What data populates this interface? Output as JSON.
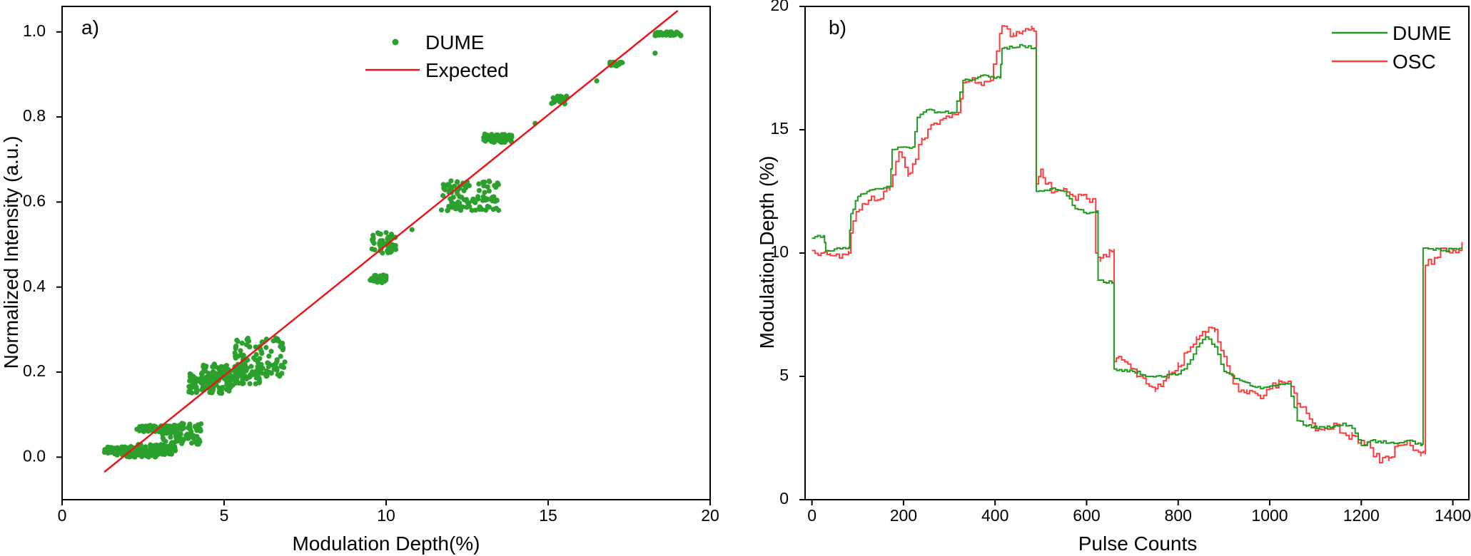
{
  "chart_data": [
    {
      "type": "scatter",
      "panel_label": "a)",
      "xlabel": "Modulation Depth(%)",
      "ylabel": "Normalized Intensity (a.u.)",
      "xlim": [
        0,
        20
      ],
      "ylim": [
        -0.1,
        1.06
      ],
      "xticks": [
        0,
        5,
        10,
        15,
        20
      ],
      "yticks": [
        0.0,
        0.2,
        0.4,
        0.6,
        0.8,
        1.0
      ],
      "ytick_labels": [
        "0.0",
        "0.2",
        "0.4",
        "0.6",
        "0.8",
        "1.0"
      ],
      "legend_position": "top-center",
      "series": [
        {
          "name": "DUME",
          "kind": "points",
          "color": "#2ca02c",
          "clusters": [
            {
              "x": [
                1.3,
                2.6
              ],
              "y": [
                0.005,
                0.025
              ]
            },
            {
              "x": [
                1.9,
                2.9
              ],
              "y": [
                0.0,
                0.015
              ]
            },
            {
              "x": [
                2.3,
                3.5
              ],
              "y": [
                0.005,
                0.03
              ]
            },
            {
              "x": [
                2.3,
                3.6
              ],
              "y": [
                0.06,
                0.075
              ]
            },
            {
              "x": [
                3.1,
                4.3
              ],
              "y": [
                0.03,
                0.08
              ]
            },
            {
              "x": [
                3.9,
                5.3
              ],
              "y": [
                0.15,
                0.2
              ]
            },
            {
              "x": [
                4.3,
                6.2
              ],
              "y": [
                0.17,
                0.22
              ]
            },
            {
              "x": [
                5.3,
                6.9
              ],
              "y": [
                0.19,
                0.28
              ]
            },
            {
              "x": [
                9.5,
                10.3
              ],
              "y": [
                0.48,
                0.53
              ]
            },
            {
              "x": [
                9.5,
                10.0
              ],
              "y": [
                0.41,
                0.43
              ]
            },
            {
              "x": [
                11.7,
                13.5
              ],
              "y": [
                0.58,
                0.65
              ]
            },
            {
              "x": [
                13.0,
                13.9
              ],
              "y": [
                0.74,
                0.76
              ]
            },
            {
              "x": [
                15.1,
                15.6
              ],
              "y": [
                0.83,
                0.85
              ]
            },
            {
              "x": [
                16.9,
                17.3
              ],
              "y": [
                0.92,
                0.93
              ]
            },
            {
              "x": [
                18.3,
                19.1
              ],
              "y": [
                0.99,
                1.0
              ]
            }
          ],
          "points": [
            {
              "x": 1.6,
              "y": 0.018
            },
            {
              "x": 2.0,
              "y": 0.012
            },
            {
              "x": 2.5,
              "y": 0.02
            },
            {
              "x": 2.8,
              "y": 0.067
            },
            {
              "x": 3.1,
              "y": 0.073
            },
            {
              "x": 3.5,
              "y": 0.055
            },
            {
              "x": 4.1,
              "y": 0.072
            },
            {
              "x": 4.4,
              "y": 0.16
            },
            {
              "x": 4.9,
              "y": 0.19
            },
            {
              "x": 5.5,
              "y": 0.2
            },
            {
              "x": 6.1,
              "y": 0.26
            },
            {
              "x": 6.6,
              "y": 0.28
            },
            {
              "x": 6.8,
              "y": 0.215
            },
            {
              "x": 9.8,
              "y": 0.5
            },
            {
              "x": 9.7,
              "y": 0.42
            },
            {
              "x": 10.8,
              "y": 0.535
            },
            {
              "x": 11.9,
              "y": 0.58
            },
            {
              "x": 12.4,
              "y": 0.64
            },
            {
              "x": 13.0,
              "y": 0.645
            },
            {
              "x": 13.4,
              "y": 0.75
            },
            {
              "x": 14.6,
              "y": 0.785
            },
            {
              "x": 15.3,
              "y": 0.84
            },
            {
              "x": 16.5,
              "y": 0.885
            },
            {
              "x": 17.1,
              "y": 0.925
            },
            {
              "x": 18.3,
              "y": 0.95
            },
            {
              "x": 18.8,
              "y": 1.0
            }
          ]
        },
        {
          "name": "Expected",
          "kind": "line",
          "color": "#e8161b",
          "x": [
            1.3,
            19.0
          ],
          "y": [
            -0.035,
            1.05
          ]
        }
      ]
    },
    {
      "type": "line",
      "panel_label": "b)",
      "xlabel": "Pulse Counts",
      "ylabel": "Modulation Depth (%)",
      "xlim": [
        -15,
        1435
      ],
      "ylim": [
        0,
        20
      ],
      "xticks": [
        0,
        200,
        400,
        600,
        800,
        1000,
        1200,
        1400
      ],
      "yticks": [
        0,
        5,
        10,
        15,
        20
      ],
      "legend_position": "top-right",
      "series": [
        {
          "name": "DUME",
          "color": "#1f9a1f",
          "x": [
            0,
            25,
            30,
            80,
            85,
            100,
            120,
            150,
            170,
            175,
            200,
            220,
            230,
            250,
            280,
            310,
            330,
            345,
            380,
            410,
            415,
            460,
            485,
            490,
            520,
            550,
            575,
            600,
            620,
            625,
            655,
            660,
            700,
            740,
            770,
            800,
            820,
            840,
            860,
            880,
            900,
            940,
            980,
            1000,
            1040,
            1060,
            1080,
            1120,
            1160,
            1180,
            1200,
            1220,
            1260,
            1300,
            1330,
            1335,
            1380,
            1420
          ],
          "y": [
            10.6,
            10.7,
            10.1,
            10.2,
            11.6,
            12.3,
            12.5,
            12.6,
            12.7,
            14.2,
            14.3,
            14.3,
            15.5,
            15.8,
            15.7,
            15.7,
            17.0,
            17.0,
            17.2,
            17.1,
            18.3,
            18.4,
            18.3,
            12.5,
            12.6,
            12.5,
            11.8,
            11.6,
            11.7,
            8.9,
            8.8,
            5.3,
            5.2,
            5.0,
            5.0,
            5.1,
            5.5,
            6.2,
            6.6,
            6.2,
            5.2,
            4.8,
            4.5,
            4.6,
            4.7,
            3.2,
            3.0,
            2.9,
            3.1,
            2.9,
            2.2,
            2.4,
            2.3,
            2.4,
            2.2,
            10.2,
            10.1,
            10.2
          ]
        },
        {
          "name": "OSC",
          "color": "#ff3b3b",
          "x": [
            0,
            20,
            40,
            60,
            80,
            90,
            110,
            130,
            150,
            170,
            190,
            210,
            220,
            240,
            260,
            280,
            300,
            320,
            330,
            350,
            370,
            390,
            410,
            420,
            440,
            460,
            480,
            490,
            500,
            510,
            530,
            550,
            570,
            600,
            620,
            630,
            650,
            660,
            670,
            690,
            710,
            730,
            750,
            780,
            800,
            820,
            840,
            860,
            880,
            900,
            920,
            950,
            980,
            1000,
            1020,
            1040,
            1060,
            1080,
            1100,
            1120,
            1140,
            1160,
            1180,
            1200,
            1220,
            1240,
            1260,
            1280,
            1300,
            1320,
            1330,
            1340,
            1360,
            1380,
            1400,
            1420
          ],
          "y": [
            10.1,
            10.0,
            9.9,
            9.8,
            10.0,
            11.3,
            12.0,
            12.3,
            12.2,
            12.7,
            14.1,
            13.2,
            13.6,
            14.6,
            15.2,
            15.4,
            15.5,
            15.7,
            16.9,
            17.1,
            16.8,
            17.0,
            18.9,
            19.2,
            18.8,
            19.0,
            19.1,
            12.8,
            13.4,
            12.8,
            12.5,
            12.6,
            12.3,
            12.2,
            10.0,
            9.8,
            10.1,
            5.6,
            5.8,
            5.5,
            5.0,
            4.7,
            4.5,
            5.1,
            5.4,
            6.0,
            6.5,
            6.8,
            6.9,
            5.8,
            4.7,
            4.3,
            4.1,
            4.5,
            4.8,
            4.8,
            3.9,
            3.5,
            2.8,
            2.9,
            3.1,
            2.7,
            2.6,
            2.4,
            2.1,
            1.5,
            1.7,
            2.2,
            2.4,
            2.0,
            1.9,
            9.5,
            9.8,
            10.2,
            10.1,
            10.3
          ]
        }
      ]
    }
  ]
}
